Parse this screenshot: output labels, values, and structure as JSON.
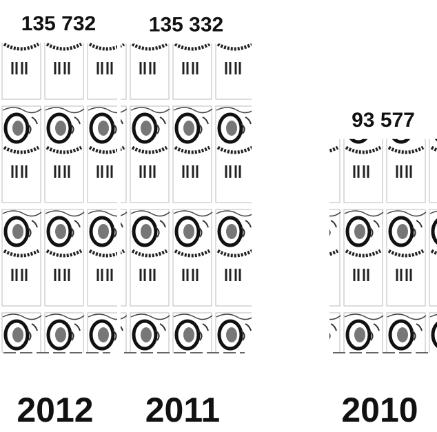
{
  "chart_data": {
    "type": "pictogram",
    "categories": [
      "2012",
      "2011",
      "2010"
    ],
    "values": [
      135732,
      135332,
      93577
    ],
    "value_labels": [
      "135 732",
      "135 332",
      "93 577"
    ]
  }
}
